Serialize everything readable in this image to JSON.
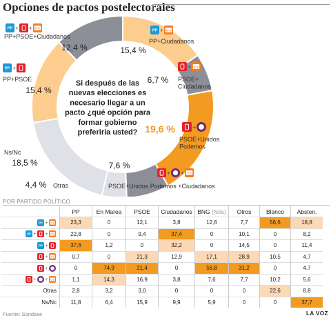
{
  "title": "Opciones de pactos postelectorales",
  "center_question": [
    "Si después de las",
    "nuevas elecciones es",
    "necesario llegar a un",
    "pacto ¿qué opción para",
    "formar gobierno",
    "preferiría usted?"
  ],
  "chart_data": {
    "type": "pie",
    "title": "Opciones de pactos postelectorales",
    "slices": [
      {
        "label": "PP+Ciudadanos",
        "value": 15.4,
        "value_label": "15,4 %"
      },
      {
        "label": "PSOE+Ciudadanos",
        "value": 6.7,
        "value_label": "6,7 %"
      },
      {
        "label": "PSOE+Unidos Podemos",
        "value": 19.6,
        "value_label": "19,6 %"
      },
      {
        "label": "PSOE+Unidos Podemos +Ciudadanos",
        "value": 7.6,
        "value_label": "7,6 %"
      },
      {
        "label": "Otras",
        "value": 4.4,
        "value_label": "4,4 %"
      },
      {
        "label": "Ns/Nc",
        "value": 18.5,
        "value_label": "18,5 %"
      },
      {
        "label": "PP+PSOE",
        "value": 15.4,
        "value_label": "15,4 %"
      },
      {
        "label": "PP+PSOE+Ciudadanos",
        "value": 12.4,
        "value_label": "12,4 %"
      }
    ],
    "table": {
      "title": "POR PARTIDO POLÍTICO",
      "columns": [
        "PP",
        "En Marea",
        "PSOE",
        "Ciudadanos",
        "BNG",
        "Otros",
        "Blanco",
        "Absten."
      ],
      "bng_note": "(Nós)",
      "rows": [
        {
          "label": "PP+Ciudadanos",
          "values": [
            "23,3",
            "0",
            "12,1",
            "3,8",
            "12,6",
            "7,7",
            "56,6",
            "18,8"
          ],
          "hl": [
            1,
            0,
            0,
            0,
            0,
            0,
            2,
            1
          ]
        },
        {
          "label": "PP+PSOE+Ciudadanos",
          "values": [
            "22,8",
            "0",
            "9,4",
            "37,4",
            "0",
            "10,1",
            "0",
            "8,2"
          ],
          "hl": [
            0,
            0,
            0,
            2,
            0,
            0,
            0,
            0
          ]
        },
        {
          "label": "PP+PSOE",
          "values": [
            "37,6",
            "1,2",
            "0",
            "32,2",
            "0",
            "14,5",
            "0",
            "11,4"
          ],
          "hl": [
            2,
            0,
            0,
            1,
            0,
            0,
            0,
            0
          ]
        },
        {
          "label": "PSOE+Ciudadanos",
          "values": [
            "0,7",
            "0",
            "21,3",
            "12,9",
            "17,1",
            "28,9",
            "10,5",
            "4,7"
          ],
          "hl": [
            0,
            0,
            1,
            0,
            1,
            1,
            0,
            0
          ]
        },
        {
          "label": "PSOE+Unidos Podemos",
          "values": [
            "0",
            "74,9",
            "21,4",
            "0",
            "56,8",
            "31,2",
            "0",
            "4,7"
          ],
          "hl": [
            0,
            2,
            2,
            0,
            2,
            2,
            0,
            0
          ]
        },
        {
          "label": "PSOE+Unidos Podemos+Ciudadanos",
          "values": [
            "1,1",
            "14,3",
            "16,9",
            "3,8",
            "7,6",
            "7,7",
            "10,2",
            "5,6"
          ],
          "hl": [
            0,
            1,
            0,
            0,
            0,
            0,
            0,
            0
          ]
        },
        {
          "label": "Otras",
          "values": [
            "2,8",
            "3,2",
            "3,0",
            "0",
            "0",
            "0",
            "22,6",
            "8,8"
          ],
          "hl": [
            0,
            0,
            0,
            0,
            0,
            0,
            1,
            0
          ]
        },
        {
          "label": "Ns/Nc",
          "values": [
            "11,8",
            "6,4",
            "15,9",
            "9,9",
            "5,9",
            "0",
            "0",
            "37,7"
          ],
          "hl": [
            0,
            0,
            0,
            0,
            0,
            0,
            0,
            2
          ]
        }
      ]
    }
  },
  "party_marks": {
    "pp": "PP",
    "cs": "C's"
  },
  "colors": {
    "orange": "#f39a20",
    "light_orange": "#fccd8f",
    "grey": "#8c8f98",
    "light_grey": "#dfe1e6",
    "pp_blue": "#1c9ad6",
    "psoe_red": "#e2232a",
    "podemos_purple": "#6d2a7a",
    "cs_orange": "#f47c20"
  },
  "source": "Fuente: Sondaxe",
  "brand": "LA VOZ"
}
